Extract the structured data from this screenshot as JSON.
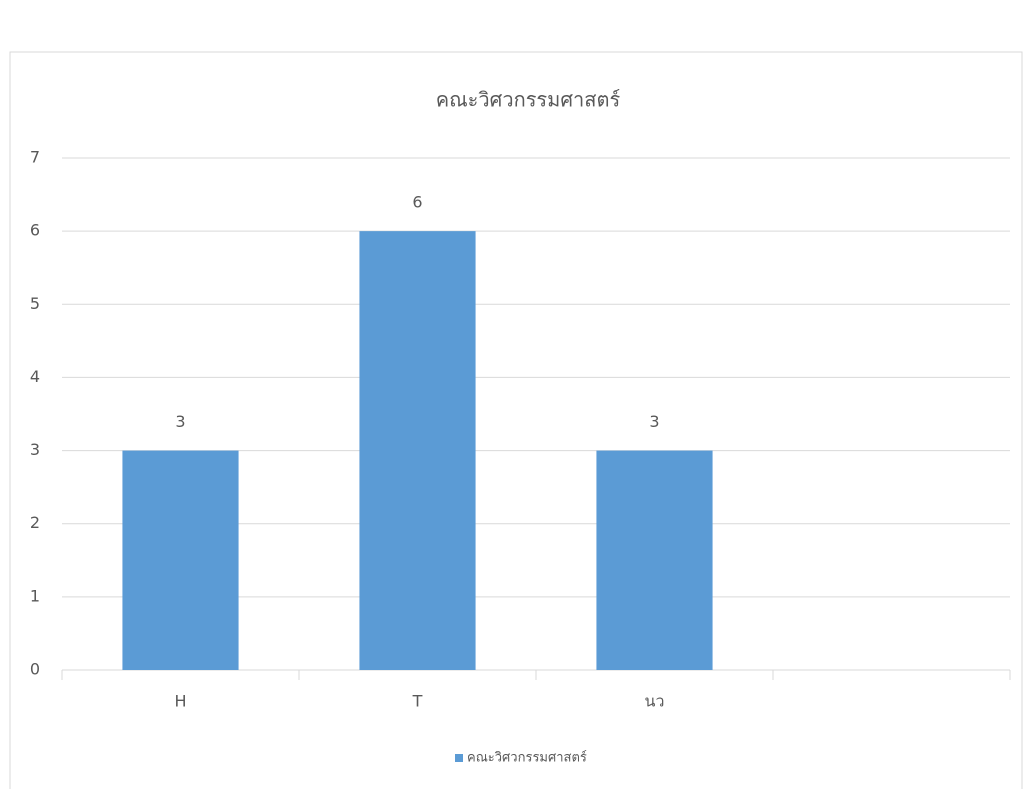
{
  "chart_data": {
    "type": "bar",
    "title": "คณะวิศวกรรมศาสตร์",
    "categories": [
      "H",
      "T",
      "นว",
      null
    ],
    "series": [
      {
        "name": "คณะวิศวกรรมศาสตร์",
        "color": "#5b9bd5",
        "values": [
          3,
          6,
          3,
          null
        ]
      }
    ],
    "ylim": [
      0,
      7
    ],
    "yticks": [
      0,
      1,
      2,
      3,
      4,
      5,
      6,
      7
    ],
    "grid": true,
    "legend": "bottom"
  }
}
